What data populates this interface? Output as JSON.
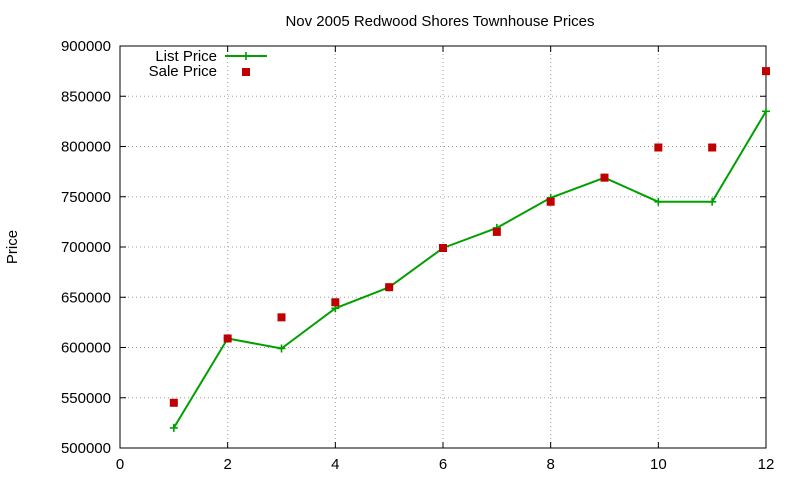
{
  "chart_data": {
    "type": "line",
    "title": "Nov 2005 Redwood Shores Townhouse Prices",
    "xlabel": "",
    "ylabel": "Price",
    "xlim": [
      0,
      12
    ],
    "ylim": [
      500000,
      900000
    ],
    "x_ticks": [
      0,
      2,
      4,
      6,
      8,
      10,
      12
    ],
    "y_ticks": [
      500000,
      550000,
      600000,
      650000,
      700000,
      750000,
      800000,
      850000,
      900000
    ],
    "grid": true,
    "legend_position": "top-left",
    "series": [
      {
        "name": "List Price",
        "style": "line-plus",
        "color": "#00a000",
        "points": [
          [
            1,
            520000
          ],
          [
            2,
            609000
          ],
          [
            3,
            599000
          ],
          [
            4,
            639000
          ],
          [
            5,
            660000
          ],
          [
            6,
            699000
          ],
          [
            7,
            719000
          ],
          [
            8,
            749000
          ],
          [
            9,
            769000
          ],
          [
            10,
            745000
          ],
          [
            11,
            745000
          ],
          [
            12,
            835000
          ]
        ]
      },
      {
        "name": "Sale Price",
        "style": "square-marker",
        "color": "#c00000",
        "points": [
          [
            1,
            545000
          ],
          [
            2,
            609000
          ],
          [
            3,
            630000
          ],
          [
            4,
            645000
          ],
          [
            5,
            660000
          ],
          [
            6,
            699000
          ],
          [
            7,
            715000
          ],
          [
            8,
            745000
          ],
          [
            9,
            769000
          ],
          [
            10,
            799000
          ],
          [
            11,
            799000
          ],
          [
            12,
            875000
          ]
        ]
      }
    ]
  }
}
